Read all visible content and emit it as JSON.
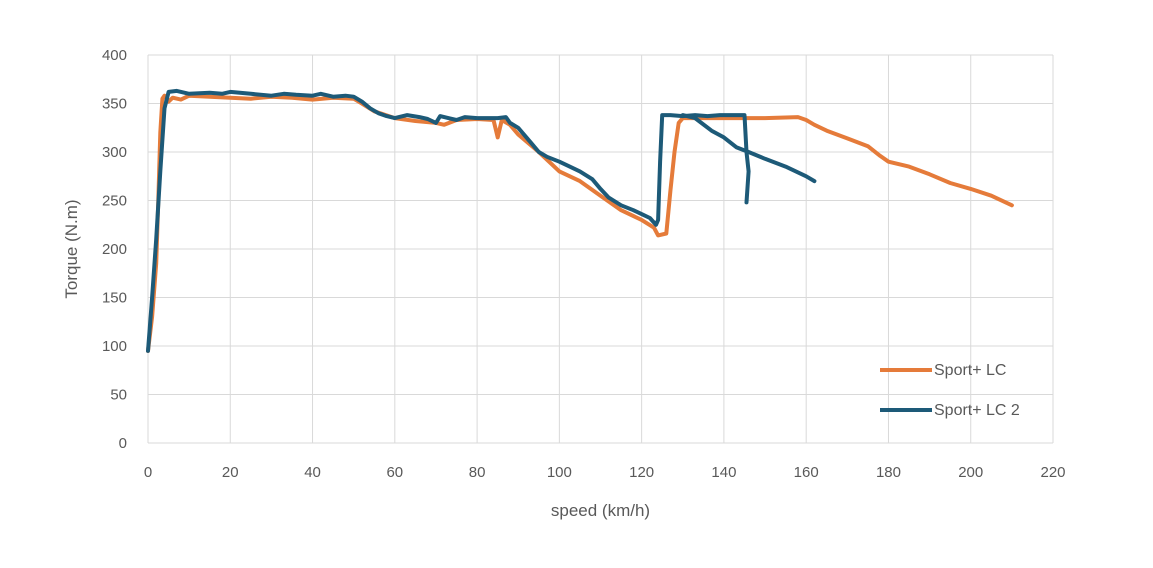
{
  "chart_data": {
    "type": "line",
    "title": "",
    "xlabel": "speed (km/h)",
    "ylabel": "Torque (N.m)",
    "xlim": [
      0,
      220
    ],
    "ylim": [
      0,
      400
    ],
    "x_ticks": [
      0,
      20,
      40,
      60,
      80,
      100,
      120,
      140,
      160,
      180,
      200,
      220
    ],
    "y_ticks": [
      0,
      50,
      100,
      150,
      200,
      250,
      300,
      350,
      400
    ],
    "grid": true,
    "legend_position": "bottom-right",
    "colors": {
      "series_1": "#e57b3a",
      "series_2": "#1d5a78",
      "grid": "#d9d9d9",
      "text": "#595959"
    },
    "series": [
      {
        "name": "Sport+ LC",
        "points": [
          [
            0,
            95
          ],
          [
            1,
            130
          ],
          [
            2,
            185
          ],
          [
            2.5,
            250
          ],
          [
            3,
            320
          ],
          [
            3.5,
            355
          ],
          [
            4,
            358
          ],
          [
            5,
            352
          ],
          [
            6,
            356
          ],
          [
            8,
            354
          ],
          [
            10,
            358
          ],
          [
            15,
            357
          ],
          [
            20,
            356
          ],
          [
            25,
            355
          ],
          [
            30,
            357
          ],
          [
            35,
            356
          ],
          [
            40,
            354
          ],
          [
            45,
            356
          ],
          [
            50,
            355
          ],
          [
            52,
            350
          ],
          [
            55,
            342
          ],
          [
            60,
            335
          ],
          [
            65,
            332
          ],
          [
            70,
            330
          ],
          [
            72,
            328
          ],
          [
            75,
            333
          ],
          [
            80,
            334
          ],
          [
            84,
            333
          ],
          [
            85,
            315
          ],
          [
            86,
            333
          ],
          [
            88,
            328
          ],
          [
            90,
            318
          ],
          [
            95,
            300
          ],
          [
            100,
            280
          ],
          [
            105,
            270
          ],
          [
            110,
            255
          ],
          [
            115,
            240
          ],
          [
            120,
            230
          ],
          [
            123,
            222
          ],
          [
            124,
            214
          ],
          [
            126,
            216
          ],
          [
            127,
            260
          ],
          [
            128,
            300
          ],
          [
            129,
            330
          ],
          [
            130,
            335
          ],
          [
            140,
            335
          ],
          [
            150,
            335
          ],
          [
            158,
            336
          ],
          [
            160,
            333
          ],
          [
            162,
            328
          ],
          [
            165,
            322
          ],
          [
            170,
            314
          ],
          [
            175,
            306
          ],
          [
            178,
            296
          ],
          [
            180,
            290
          ],
          [
            185,
            285
          ],
          [
            190,
            277
          ],
          [
            195,
            268
          ],
          [
            200,
            262
          ],
          [
            205,
            255
          ],
          [
            210,
            245
          ]
        ]
      },
      {
        "name": "Sport+ LC 2",
        "points": [
          [
            0,
            95
          ],
          [
            1,
            150
          ],
          [
            2,
            210
          ],
          [
            3,
            280
          ],
          [
            4,
            345
          ],
          [
            5,
            362
          ],
          [
            7,
            363
          ],
          [
            10,
            360
          ],
          [
            15,
            361
          ],
          [
            18,
            360
          ],
          [
            20,
            362
          ],
          [
            25,
            360
          ],
          [
            30,
            358
          ],
          [
            33,
            360
          ],
          [
            36,
            359
          ],
          [
            40,
            358
          ],
          [
            42,
            360
          ],
          [
            45,
            357
          ],
          [
            48,
            358
          ],
          [
            50,
            357
          ],
          [
            52,
            352
          ],
          [
            54,
            345
          ],
          [
            56,
            340
          ],
          [
            58,
            337
          ],
          [
            60,
            335
          ],
          [
            63,
            338
          ],
          [
            66,
            336
          ],
          [
            68,
            334
          ],
          [
            70,
            330
          ],
          [
            71,
            337
          ],
          [
            73,
            335
          ],
          [
            75,
            333
          ],
          [
            77,
            336
          ],
          [
            80,
            335
          ],
          [
            85,
            335
          ],
          [
            87,
            336
          ],
          [
            88,
            330
          ],
          [
            90,
            325
          ],
          [
            93,
            310
          ],
          [
            95,
            300
          ],
          [
            97,
            295
          ],
          [
            100,
            290
          ],
          [
            102,
            286
          ],
          [
            105,
            280
          ],
          [
            108,
            272
          ],
          [
            110,
            262
          ],
          [
            112,
            253
          ],
          [
            115,
            245
          ],
          [
            118,
            240
          ],
          [
            120,
            236
          ],
          [
            122,
            232
          ],
          [
            123.5,
            225
          ],
          [
            124,
            230
          ],
          [
            124.5,
            290
          ],
          [
            125,
            338
          ],
          [
            127,
            338
          ],
          [
            130,
            337
          ],
          [
            133,
            338
          ],
          [
            136,
            337
          ],
          [
            139,
            338
          ],
          [
            141,
            338
          ],
          [
            145,
            338
          ],
          [
            145.5,
            300
          ],
          [
            146,
            280
          ],
          [
            145.5,
            248
          ]
        ]
      },
      {
        "name": "",
        "points": [
          [
            130,
            338
          ],
          [
            133,
            335
          ],
          [
            137,
            322
          ],
          [
            140,
            315
          ],
          [
            143,
            305
          ],
          [
            146,
            300
          ],
          [
            150,
            293
          ],
          [
            155,
            285
          ],
          [
            160,
            275
          ],
          [
            162,
            270
          ]
        ]
      }
    ]
  }
}
